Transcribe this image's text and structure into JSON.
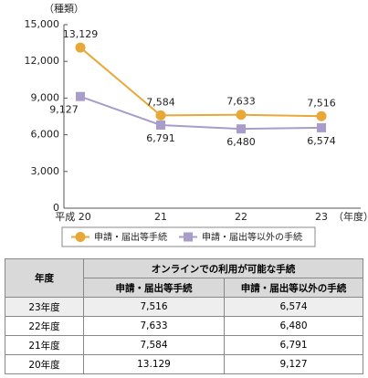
{
  "chart_data": {
    "type": "line",
    "y_axis_label": "（種類）",
    "x_axis_label": "（年度）",
    "categories": [
      "平成 20",
      "21",
      "22",
      "23"
    ],
    "ylim": [
      0,
      15000
    ],
    "yticks": [
      {
        "value": 0,
        "label": "0"
      },
      {
        "value": 3000,
        "label": "3,000"
      },
      {
        "value": 6000,
        "label": "6,000"
      },
      {
        "value": 9000,
        "label": "9,000"
      },
      {
        "value": 12000,
        "label": "12,000"
      },
      {
        "value": 15000,
        "label": "15,000"
      }
    ],
    "legend": "bottom",
    "series": [
      {
        "name": "申請・届出等手続",
        "color": "#e8a838",
        "marker": "circle",
        "values": [
          13129,
          7584,
          7633,
          7516
        ],
        "value_labels": [
          "13,129",
          "7,584",
          "7,633",
          "7,516"
        ]
      },
      {
        "name": "申請・届出等以外の手続",
        "color": "#a89ccb",
        "marker": "square",
        "values": [
          9127,
          6791,
          6480,
          6574
        ],
        "value_labels": [
          "9,127",
          "6,791",
          "6,480",
          "6,574"
        ]
      }
    ]
  },
  "table": {
    "header": [
      "年度",
      "オンラインでの利用が可能な手続"
    ],
    "subheader": [
      "申請・届出等手続",
      "申請・届出等以外の手続"
    ],
    "rows": [
      [
        "23年度",
        "7,516",
        "6,574"
      ],
      [
        "22年度",
        "7,633",
        "6,480"
      ],
      [
        "21年度",
        "7,584",
        "6,791"
      ],
      [
        "20年度",
        "13.129",
        "9,127"
      ]
    ]
  }
}
